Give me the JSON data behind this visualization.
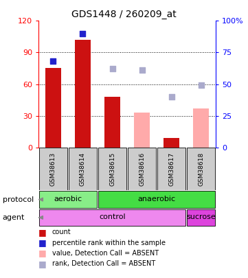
{
  "title": "GDS1448 / 260209_at",
  "samples": [
    "GSM38613",
    "GSM38614",
    "GSM38615",
    "GSM38616",
    "GSM38617",
    "GSM38618"
  ],
  "bar_present_value": [
    75,
    102,
    48,
    null,
    9,
    null
  ],
  "bar_absent_value": [
    null,
    null,
    null,
    33,
    null,
    37
  ],
  "dot_present_rank": [
    68,
    90,
    null,
    null,
    null,
    null
  ],
  "dot_absent_rank": [
    null,
    null,
    62,
    61,
    40,
    49
  ],
  "ylim_left": [
    0,
    120
  ],
  "ylim_right": [
    0,
    100
  ],
  "yticks_left": [
    0,
    30,
    60,
    90,
    120
  ],
  "yticks_right": [
    0,
    25,
    50,
    75,
    100
  ],
  "ytick_labels_left": [
    "0",
    "30",
    "60",
    "90",
    "120"
  ],
  "ytick_labels_right": [
    "0",
    "25",
    "50",
    "75",
    "100%"
  ],
  "color_bar_present": "#cc1111",
  "color_bar_absent": "#ffaaaa",
  "color_dot_present": "#2222cc",
  "color_dot_absent": "#aaaacc",
  "protocol_aerobic_range": [
    0,
    1
  ],
  "protocol_anaerobic_range": [
    2,
    5
  ],
  "agent_control_range": [
    0,
    4
  ],
  "agent_sucrose_range": [
    5,
    5
  ],
  "color_aerobic": "#88ee88",
  "color_anaerobic": "#44dd44",
  "color_control": "#ee88ee",
  "color_sucrose": "#dd44dd",
  "color_sample_bg": "#cccccc",
  "legend_items": [
    {
      "color": "#cc1111",
      "label": "count"
    },
    {
      "color": "#2222cc",
      "label": "percentile rank within the sample"
    },
    {
      "color": "#ffaaaa",
      "label": "value, Detection Call = ABSENT"
    },
    {
      "color": "#aaaacc",
      "label": "rank, Detection Call = ABSENT"
    }
  ],
  "bar_width": 0.55,
  "dot_size": 32,
  "grid_lines": [
    30,
    60,
    90
  ]
}
